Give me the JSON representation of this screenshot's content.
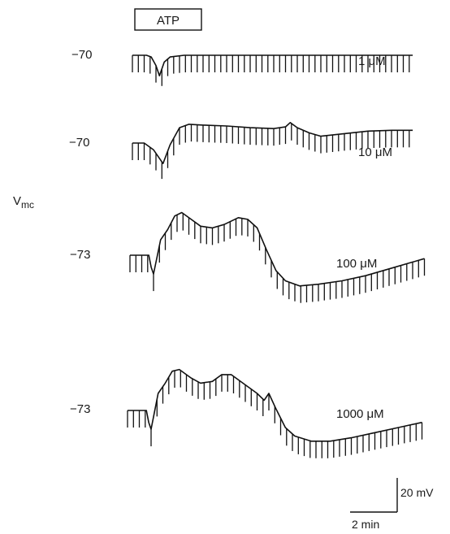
{
  "figure": {
    "ylabel": "V",
    "ylabel_sub": "mc",
    "stimulus_label": "ATP",
    "scale_bar": {
      "voltage": "20 mV",
      "time": "2 min",
      "voltage_mv": 20,
      "time_min": 2
    }
  },
  "chart_data": {
    "type": "line",
    "title": "",
    "xlabel": "",
    "ylabel": "Vmc",
    "x_unit": "min",
    "y_unit": "mV",
    "pulse_interval_min": 0.25,
    "series": [
      {
        "name": "1 μM",
        "baseline_label": "-70",
        "pulse_mv": -10,
        "points": [
          [
            0,
            -70
          ],
          [
            0.6,
            -70
          ],
          [
            0.8,
            -71
          ],
          [
            1.0,
            -76
          ],
          [
            1.15,
            -82
          ],
          [
            1.35,
            -74
          ],
          [
            1.6,
            -71
          ],
          [
            2.2,
            -70
          ],
          [
            4,
            -70
          ],
          [
            6,
            -70
          ],
          [
            8,
            -70
          ],
          [
            10,
            -70
          ],
          [
            11.9,
            -70
          ]
        ]
      },
      {
        "name": "10 μM",
        "baseline_label": "-70",
        "pulse_mv": -10,
        "points": [
          [
            0,
            -70
          ],
          [
            0.5,
            -70
          ],
          [
            0.9,
            -74
          ],
          [
            1.3,
            -82
          ],
          [
            1.6,
            -71
          ],
          [
            2.0,
            -61
          ],
          [
            2.4,
            -59
          ],
          [
            3,
            -59.5
          ],
          [
            4,
            -60
          ],
          [
            5,
            -61
          ],
          [
            6,
            -61.5
          ],
          [
            6.5,
            -60.5
          ],
          [
            6.7,
            -58
          ],
          [
            7.0,
            -61
          ],
          [
            7.5,
            -64
          ],
          [
            8,
            -66
          ],
          [
            9,
            -64.5
          ],
          [
            10,
            -63
          ],
          [
            11,
            -62.5
          ],
          [
            11.9,
            -62.5
          ]
        ]
      },
      {
        "name": "100 μM",
        "baseline_label": "-73",
        "pulse_mv": -10,
        "points": [
          [
            0,
            -73
          ],
          [
            0.8,
            -73
          ],
          [
            0.9,
            -80
          ],
          [
            1.0,
            -84
          ],
          [
            1.3,
            -64
          ],
          [
            1.6,
            -58
          ],
          [
            1.9,
            -50
          ],
          [
            2.2,
            -48
          ],
          [
            2.6,
            -52
          ],
          [
            3,
            -56
          ],
          [
            3.5,
            -57
          ],
          [
            4,
            -55
          ],
          [
            4.6,
            -51
          ],
          [
            5,
            -52
          ],
          [
            5.4,
            -57
          ],
          [
            5.8,
            -70
          ],
          [
            6.2,
            -82
          ],
          [
            6.6,
            -88
          ],
          [
            7.2,
            -91
          ],
          [
            8,
            -90
          ],
          [
            9,
            -88
          ],
          [
            10,
            -85
          ],
          [
            11,
            -81
          ],
          [
            12,
            -77
          ],
          [
            12.5,
            -75
          ]
        ]
      },
      {
        "name": "1000 μM",
        "baseline_label": "-73",
        "pulse_mv": -10,
        "points": [
          [
            0,
            -73
          ],
          [
            0.8,
            -73
          ],
          [
            0.9,
            -80
          ],
          [
            1.0,
            -84
          ],
          [
            1.3,
            -63
          ],
          [
            1.6,
            -57
          ],
          [
            1.9,
            -50
          ],
          [
            2.2,
            -49
          ],
          [
            2.7,
            -54
          ],
          [
            3.1,
            -57
          ],
          [
            3.6,
            -56
          ],
          [
            4.0,
            -52
          ],
          [
            4.4,
            -52
          ],
          [
            5,
            -58
          ],
          [
            5.5,
            -63
          ],
          [
            5.8,
            -67
          ],
          [
            6.0,
            -63
          ],
          [
            6.3,
            -72
          ],
          [
            6.7,
            -83
          ],
          [
            7.1,
            -88
          ],
          [
            7.8,
            -91
          ],
          [
            8.6,
            -91
          ],
          [
            9.5,
            -89
          ],
          [
            10.5,
            -86
          ],
          [
            11.5,
            -83
          ],
          [
            12.5,
            -80
          ]
        ]
      }
    ]
  }
}
